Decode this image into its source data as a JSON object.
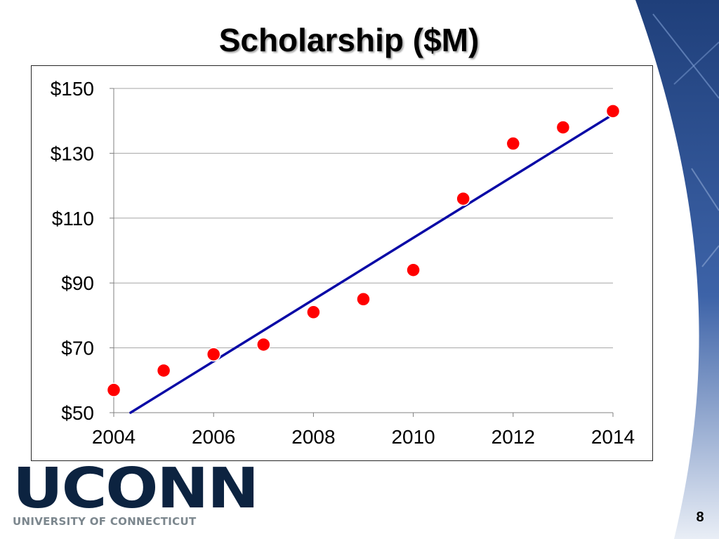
{
  "slide": {
    "title": "Scholarship ($M)",
    "page_number": "8",
    "logo_wordmark": "UCONN",
    "logo_subtitle": "UNIVERSITY OF CONNECTICUT"
  },
  "colors": {
    "point_fill": "#ff0000",
    "point_stroke": "#ffffff",
    "trendline": "#0a0aa6",
    "gridline": "#a6a6a6",
    "brand_navy": "#0c2340",
    "brand_gray": "#7c878e"
  },
  "chart_data": {
    "type": "scatter",
    "title": "",
    "xlabel": "",
    "ylabel": "",
    "x": [
      2004,
      2005,
      2006,
      2007,
      2008,
      2009,
      2010,
      2011,
      2012,
      2013,
      2014
    ],
    "y": [
      57,
      63,
      68,
      71,
      81,
      85,
      94,
      116,
      133,
      138,
      143
    ],
    "xlim": [
      2004,
      2014
    ],
    "ylim": [
      50,
      150
    ],
    "x_ticks": [
      2004,
      2006,
      2008,
      2010,
      2012,
      2014
    ],
    "x_tick_labels": [
      "2004",
      "2006",
      "2008",
      "2010",
      "2012",
      "2014"
    ],
    "y_ticks": [
      50,
      70,
      90,
      110,
      130,
      150
    ],
    "y_tick_labels": [
      "$50",
      "$70",
      "$90",
      "$110",
      "$130",
      "$150"
    ],
    "grid": "horizontal",
    "legend": "none",
    "trendline": {
      "type": "linear",
      "x_start": 2004,
      "y_start": 46.8,
      "x_end": 2014,
      "y_end": 142
    }
  }
}
